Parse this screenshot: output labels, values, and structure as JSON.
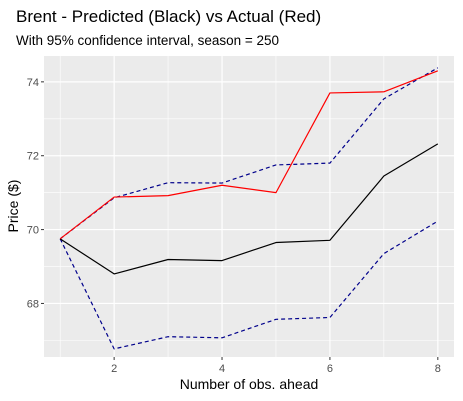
{
  "chart_data": {
    "type": "line",
    "title": "Brent - Predicted (Black) vs Actual (Red)",
    "subtitle": "With 95% confidence interval, season = 250",
    "xlabel": "Number of obs. ahead",
    "ylabel": "Price ($)",
    "x": [
      1,
      2,
      3,
      4,
      5,
      6,
      7,
      8
    ],
    "xlim": [
      0.7,
      8.3
    ],
    "ylim": [
      66.55,
      74.7
    ],
    "x_ticks": [
      2,
      4,
      6,
      8
    ],
    "y_ticks": [
      68,
      70,
      72,
      74
    ],
    "grid": true,
    "series": [
      {
        "key": "predicted",
        "color": "#000000",
        "line_style": "solid",
        "values": [
          69.75,
          68.8,
          69.19,
          69.16,
          69.65,
          69.71,
          71.45,
          72.32
        ]
      },
      {
        "key": "actual",
        "color": "#ff0000",
        "line_style": "solid",
        "values": [
          69.75,
          70.88,
          70.92,
          71.2,
          71.0,
          73.7,
          73.73,
          74.3
        ]
      },
      {
        "key": "upper",
        "color": "#00008b",
        "line_style": "dashed",
        "values": [
          69.75,
          70.86,
          71.27,
          71.26,
          71.75,
          71.8,
          73.54,
          74.38
        ]
      },
      {
        "key": "lower",
        "color": "#00008b",
        "line_style": "dashed",
        "values": [
          69.75,
          66.77,
          67.1,
          67.07,
          67.57,
          67.62,
          69.35,
          70.23
        ]
      }
    ]
  }
}
